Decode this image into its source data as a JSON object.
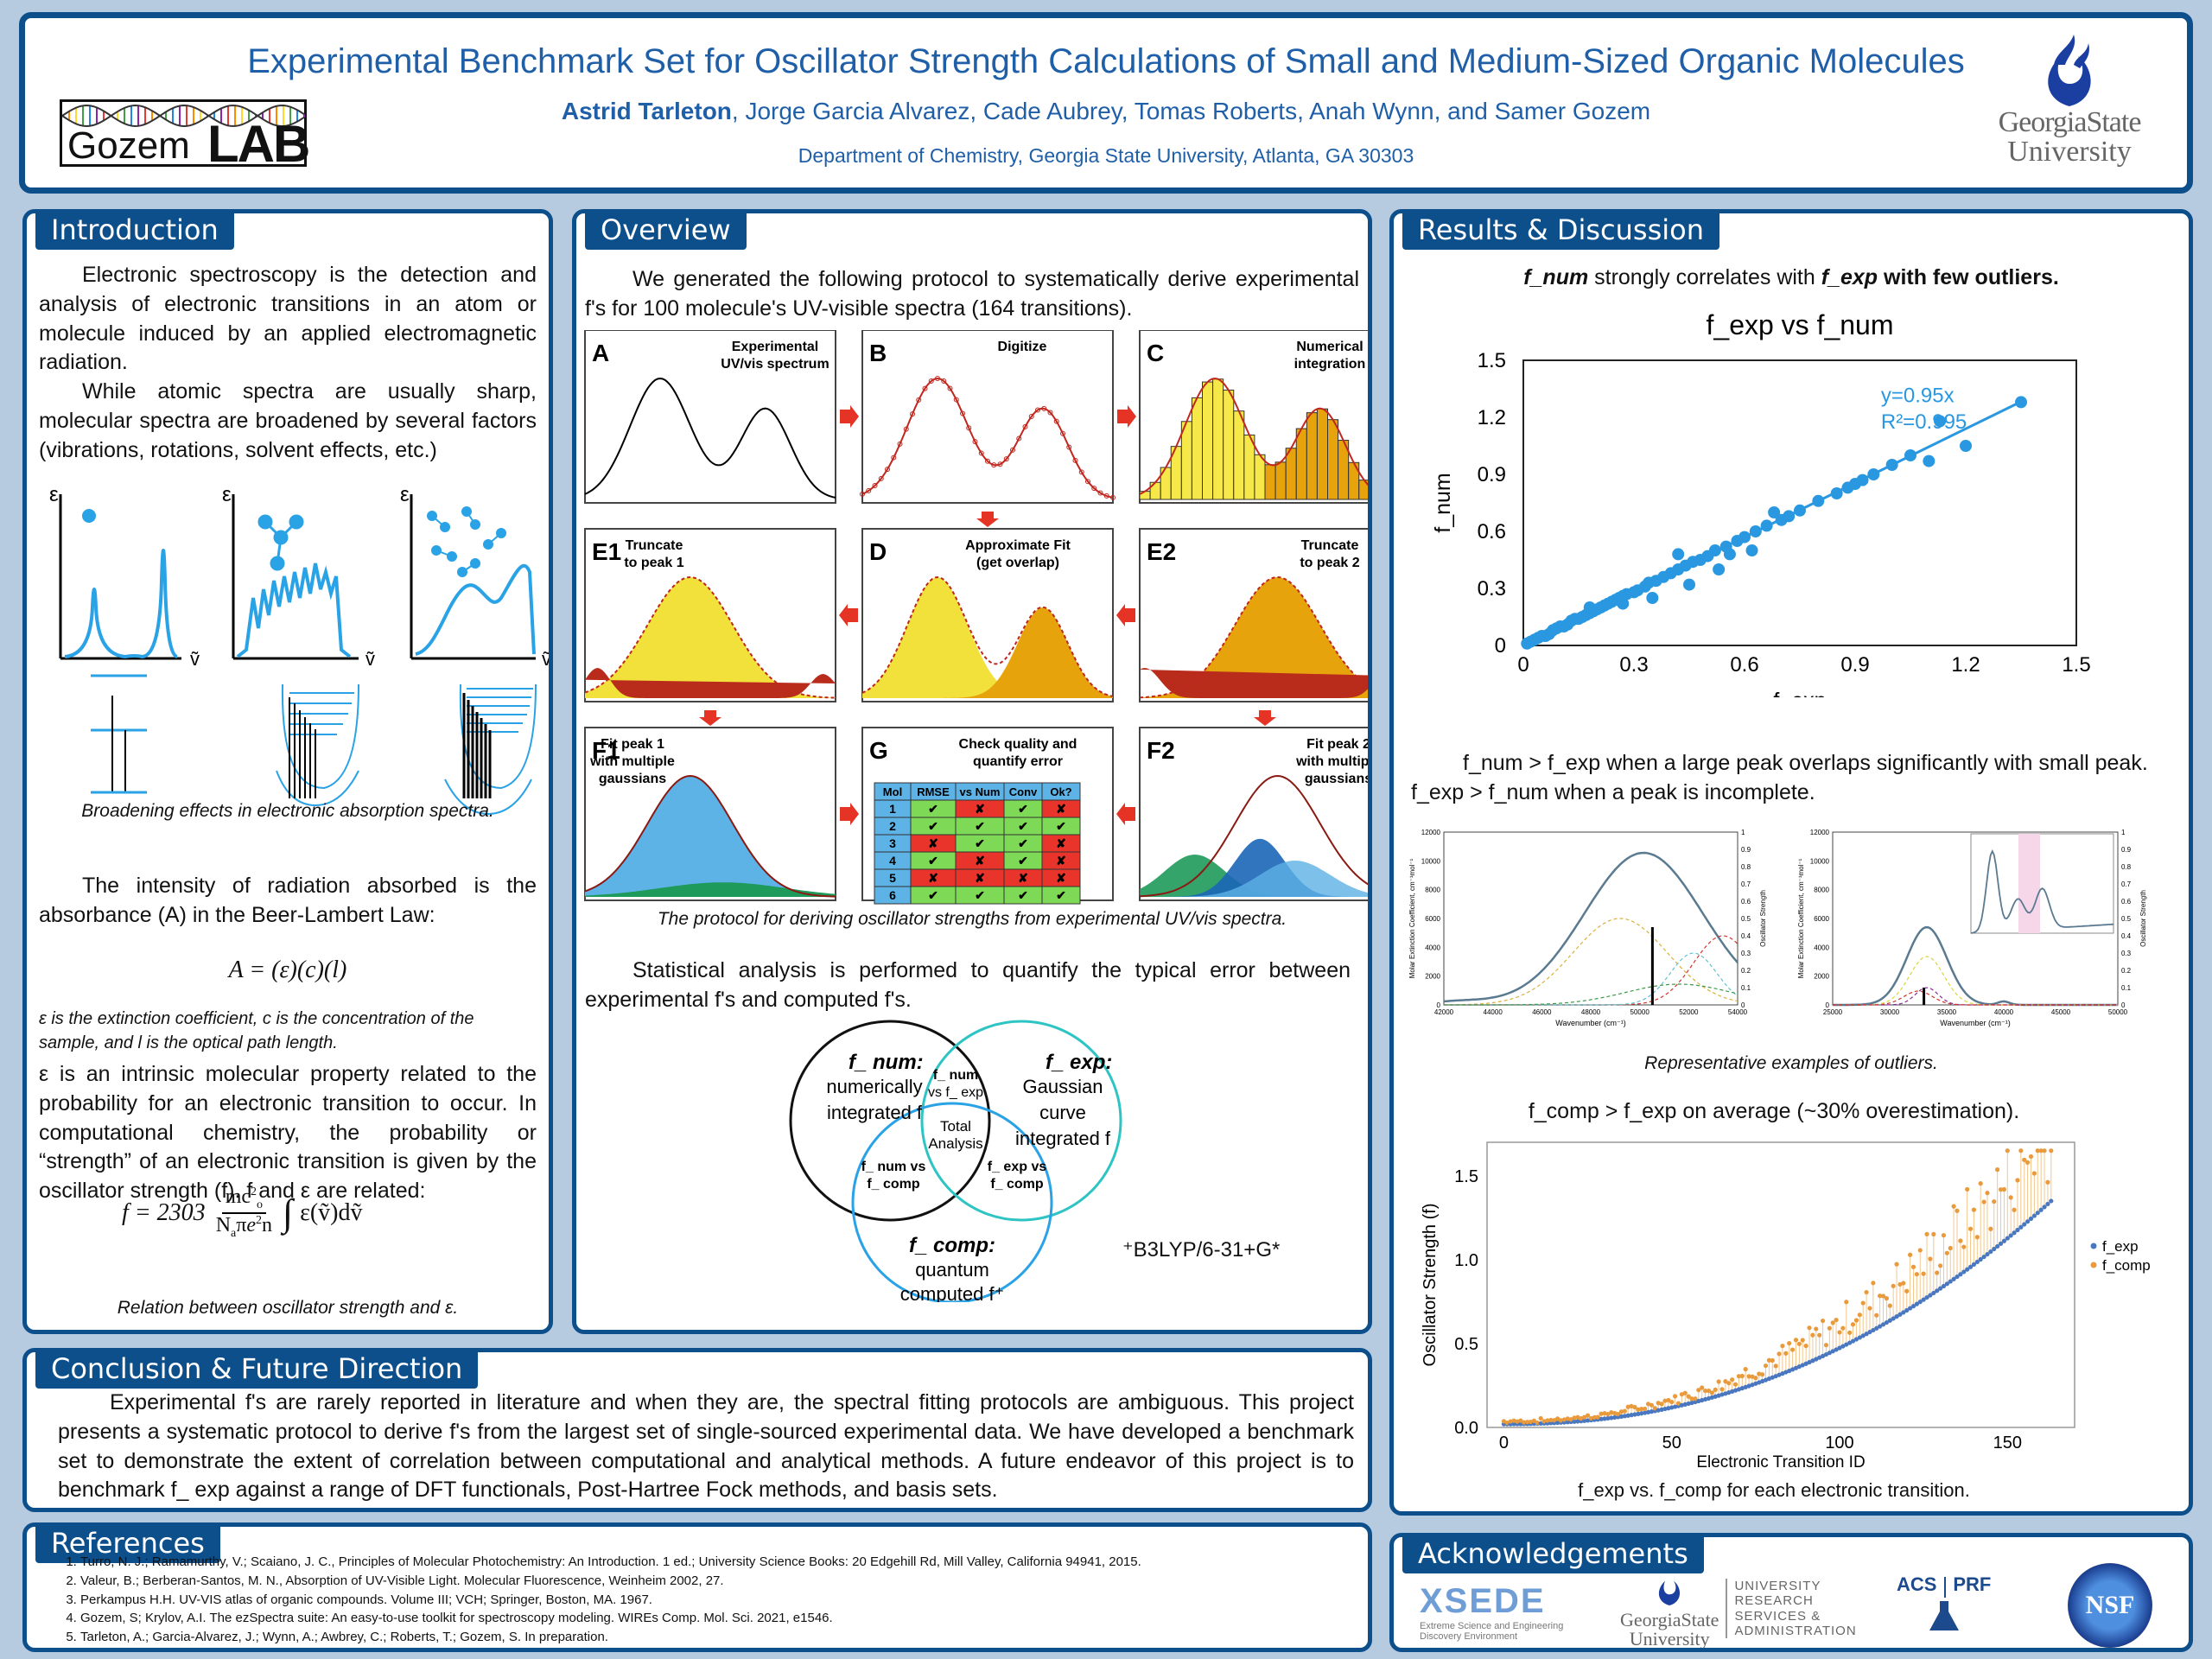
{
  "header": {
    "title": "Experimental Benchmark Set for Oscillator Strength Calculations of Small and Medium-Sized Organic Molecules",
    "presenter": "Astrid Tarleton",
    "coauthors": ", Jorge Garcia Alvarez, Cade Aubrey, Tomas Roberts, Anah Wynn, and Samer Gozem",
    "affiliation": "Department of Chemistry, Georgia State University, Atlanta, GA 30303",
    "lab_logo_left": "Gozem",
    "lab_logo_right": "LAB",
    "gsu_logo_line1": "GeorgiaState",
    "gsu_logo_line2": "University"
  },
  "introduction": {
    "heading": "Introduction",
    "para1": "Electronic spectroscopy is the detection and analysis of electronic transitions in an atom or molecule induced by an applied electromagnetic radiation.",
    "para2": "While atomic spectra are usually sharp, molecular spectra are broadened by several factors (vibrations, rotations, solvent effects, etc.)",
    "axis_eps": "ε",
    "axis_nu": "ṽ",
    "caption1": "Broadening effects in electronic absorption spectra.",
    "para3": "The intensity of radiation absorbed is the absorbance (A) in the Beer-Lambert Law:",
    "equation1": "A = (ε)(c)(l)",
    "eq_note": "ε is the extinction coefficient, c is the concentration of the sample, and l is the optical path length.",
    "para4": "ε is an intrinsic molecular property related to the probability for an electronic transition to occur. In computational chemistry, the probability or “strength” of an electronic transition is given by the oscillator strength (f). f and ε are related:",
    "eq2_lhs": "f = 2303",
    "eq2_num": "mc",
    "eq2_den": "N",
    "eq2_rhs": "ε(ṽ)dṽ",
    "caption2": "Relation between oscillator strength and ε."
  },
  "overview": {
    "heading": "Overview",
    "para1": "We generated the following protocol to systematically derive experimental f's for 100 molecule's UV-visible spectra (164 transitions).",
    "panels": {
      "A": {
        "letter": "A",
        "label1": "Experimental",
        "label2": "UV/vis spectrum"
      },
      "B": {
        "letter": "B",
        "label1": "Digitize",
        "label2": ""
      },
      "C": {
        "letter": "C",
        "label1": "Numerical",
        "label2": "integration"
      },
      "E1": {
        "letter": "E1",
        "label1": "Truncate",
        "label2": "to peak 1"
      },
      "D": {
        "letter": "D",
        "label1": "Approximate Fit",
        "label2": "(get overlap)"
      },
      "E2": {
        "letter": "E2",
        "label1": "Truncate",
        "label2": "to peak 2"
      },
      "F1": {
        "letter": "F1",
        "label1": "Fit peak 1",
        "label2": "with multiple",
        "label3": "gaussians"
      },
      "G": {
        "letter": "G",
        "label1": "Check quality and",
        "label2": "quantify error"
      },
      "F2": {
        "letter": "F2",
        "label1": "Fit peak 2",
        "label2": "with multiple",
        "label3": "gaussians"
      }
    },
    "table_headers": [
      "Mol",
      "RMSE",
      "vs Num",
      "Conv",
      "Ok?"
    ],
    "table_rows": [
      [
        "1",
        "✔",
        "✘",
        "✔",
        "✘"
      ],
      [
        "2",
        "✔",
        "✔",
        "✔",
        "✔"
      ],
      [
        "3",
        "✘",
        "✔",
        "✔",
        "✘"
      ],
      [
        "4",
        "✔",
        "✘",
        "✔",
        "✘"
      ],
      [
        "5",
        "✘",
        "✘",
        "✘",
        "✘"
      ],
      [
        "6",
        "✔",
        "✔",
        "✔",
        "✔"
      ]
    ],
    "caption": "The protocol for deriving oscillator strengths from experimental UV/vis spectra.",
    "para2": "Statistical analysis is performed to quantify the typical error between experimental f's and computed f's.",
    "venn": {
      "num_title": "f_ num:",
      "num_desc1": "numerically",
      "num_desc2": "integrated f",
      "exp_title": "f_ exp:",
      "exp_desc1": "Gaussian",
      "exp_desc2": "curve",
      "exp_desc3": "integrated f",
      "comp_title": "f_ comp:",
      "comp_desc1": "quantum",
      "comp_desc2": "computed f⁺",
      "ov1a": "f_ num",
      "ov1b": "vs f_ exp",
      "ov2a": "f_ num vs",
      "ov2b": "f_ comp",
      "ov3a": "f_ exp vs",
      "ov3b": "f_ comp",
      "center1": "Total",
      "center2": "Analysis",
      "footnote": "⁺B3LYP/6-31+G*"
    }
  },
  "results": {
    "heading": "Results & Discussion",
    "finding1_a": "f_num",
    "finding1_b": " strongly correlates with ",
    "finding1_c": "f_exp",
    "finding1_d": " with few outliers.",
    "finding2": "f_num > f_exp when a large peak overlaps significantly with small peak. f_exp > f_num when a peak is incomplete.",
    "caption_outliers": "Representative examples of outliers.",
    "finding3": "f_comp > f_exp on average (~30% overestimation).",
    "caption_comp": "f_exp vs. f_comp for each electronic transition.",
    "outlier_left": {
      "ylabel_left": "Molar Extinction Coefficient, cm⁻¹mol⁻¹",
      "ylabel_right": "Oscillator Strength",
      "xlabel": "Wavenumber (cm⁻¹)",
      "yticks": [
        "0",
        "2000",
        "4000",
        "6000",
        "8000",
        "10000",
        "12000"
      ],
      "y2ticks": [
        "0",
        "0.1",
        "0.2",
        "0.3",
        "0.4",
        "0.5",
        "0.6",
        "0.7",
        "0.8",
        "0.9",
        "1"
      ],
      "xticks": [
        "42000",
        "44000",
        "46000",
        "48000",
        "50000",
        "52000",
        "54000"
      ]
    },
    "outlier_right": {
      "ylabel_left": "Molar Extinction Coefficient, cm⁻¹mol⁻¹",
      "ylabel_right": "Oscillator Strength",
      "xlabel": "Wavenumber (cm⁻¹)",
      "yticks": [
        "0",
        "2000",
        "4000",
        "6000",
        "8000",
        "10000",
        "12000"
      ],
      "y2ticks": [
        "0",
        "0.1",
        "0.2",
        "0.3",
        "0.4",
        "0.5",
        "0.6",
        "0.7",
        "0.8",
        "0.9",
        "1"
      ],
      "xticks": [
        "25000",
        "30000",
        "35000",
        "40000",
        "45000",
        "50000"
      ]
    }
  },
  "chart_data": [
    {
      "type": "scatter",
      "title": "f_exp vs f_num",
      "xlabel": "f_exp",
      "ylabel": "f_num",
      "xlim": [
        0,
        1.5
      ],
      "ylim": [
        0,
        1.5
      ],
      "xticks": [
        "0",
        "0.3",
        "0.6",
        "0.9",
        "1.2",
        "1.5"
      ],
      "yticks": [
        "0",
        "0.3",
        "0.6",
        "0.9",
        "1.2",
        "1.5"
      ],
      "fit_label": "y=0.95x",
      "r2_label": "R²=0.995",
      "fit_slope": 0.95,
      "series": [
        {
          "x": [
            0.01,
            0.02,
            0.03,
            0.04,
            0.05,
            0.06,
            0.07,
            0.08,
            0.09,
            0.1,
            0.11,
            0.12,
            0.13,
            0.14,
            0.15,
            0.16,
            0.17,
            0.18,
            0.19,
            0.2,
            0.21,
            0.22,
            0.23,
            0.24,
            0.25,
            0.26,
            0.27,
            0.28,
            0.3,
            0.31,
            0.33,
            0.34,
            0.36,
            0.38,
            0.4,
            0.42,
            0.44,
            0.46,
            0.48,
            0.5,
            0.52,
            0.55,
            0.58,
            0.6,
            0.63,
            0.66,
            0.7,
            0.72,
            0.75,
            0.8,
            0.85,
            0.9,
            0.92,
            0.95,
            1.0,
            1.05,
            1.1,
            1.13,
            1.2,
            1.35,
            0.35,
            0.45,
            0.53,
            0.62,
            0.42,
            0.18,
            0.27,
            0.56,
            0.68,
            0.88
          ],
          "y": [
            0.01,
            0.02,
            0.03,
            0.04,
            0.05,
            0.05,
            0.06,
            0.08,
            0.09,
            0.1,
            0.1,
            0.11,
            0.13,
            0.14,
            0.14,
            0.15,
            0.16,
            0.17,
            0.18,
            0.19,
            0.2,
            0.21,
            0.22,
            0.23,
            0.24,
            0.25,
            0.26,
            0.27,
            0.28,
            0.29,
            0.31,
            0.33,
            0.34,
            0.36,
            0.38,
            0.4,
            0.42,
            0.44,
            0.45,
            0.47,
            0.5,
            0.52,
            0.55,
            0.57,
            0.6,
            0.63,
            0.66,
            0.68,
            0.71,
            0.76,
            0.8,
            0.85,
            0.87,
            0.9,
            0.95,
            1.0,
            0.97,
            1.18,
            1.05,
            1.28,
            0.25,
            0.32,
            0.4,
            0.5,
            0.48,
            0.2,
            0.22,
            0.48,
            0.7,
            0.83
          ]
        }
      ]
    },
    {
      "type": "scatter",
      "xlabel": "Electronic Transition ID",
      "ylabel": "Oscillator Strength (f)",
      "xlim": [
        -5,
        170
      ],
      "ylim": [
        0,
        1.7
      ],
      "xticks": [
        "0",
        "50",
        "100",
        "150"
      ],
      "yticks": [
        "0.0",
        "0.5",
        "1.0",
        "1.5"
      ],
      "series": [
        {
          "name": "f_exp",
          "color": "#4a78c0",
          "y_start": 0.02,
          "y_end": 1.35,
          "count": 164
        },
        {
          "name": "f_comp",
          "color": "#e89a3c",
          "overestimation": 0.3,
          "count": 164
        }
      ]
    }
  ],
  "conclusion": {
    "heading": "Conclusion & Future Direction",
    "text": "Experimental f's are rarely reported in literature and when they are, the spectral fitting protocols are ambiguous. This project presents a systematic protocol to derive f's from the largest set of single-sourced experimental data. We have developed a benchmark set to demonstrate the extent of correlation between computational and analytical methods. A future endeavor of this project is to benchmark f_ exp against a range of DFT functionals, Post-Hartree Fock methods, and basis sets."
  },
  "references": {
    "heading": "References",
    "items": [
      "Turro, N. J.;  Ramamurthy, V.; Scaiano, J. C., Principles of Molecular Photochemistry: An Introduction. 1 ed.; University Science Books: 20 Edgehill Rd, Mill Valley, California 94941, 2015.",
      "Valeur, B.; Berberan-Santos, M. N., Absorption of UV-Visible Light. Molecular Fluorescence, Weinheim 2002, 27.",
      "Perkampus H.H. UV-VIS atlas of organic compounds. Volume III; VCH; Springer, Boston, MA. 1967.",
      "Gozem, S; Krylov, A.I. The ezSpectra suite: An easy-to-use toolkit for spectroscopy modeling. WIREs Comp. Mol. Sci. 2021, e1546.",
      "Tarleton, A.; Garcia-Alvarez, J.; Wynn, A.; Awbrey, C.; Roberts, T.; Gozem, S. In preparation."
    ]
  },
  "acknowledgements": {
    "heading": "Acknowledgements",
    "xsede": "XSEDE",
    "xsede_sub1": "Extreme Science and Engineering",
    "xsede_sub2": "Discovery Environment",
    "gsu1": "GeorgiaState",
    "gsu2": "University",
    "rsa1": "UNIVERSITY",
    "rsa2": "RESEARCH",
    "rsa3": "SERVICES &",
    "rsa4": "ADMINISTRATION",
    "acs": "ACS",
    "prf": "PRF",
    "nsf": "NSF"
  }
}
